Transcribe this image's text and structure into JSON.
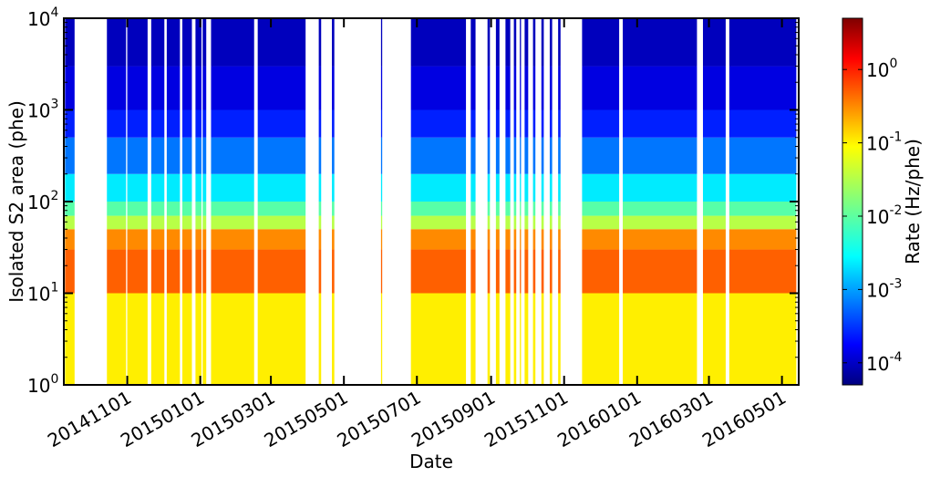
{
  "chart_data": {
    "type": "heatmap",
    "title": "",
    "xlabel": "Date",
    "ylabel": "Isolated S2 area (phe)",
    "x_tick_labels": [
      "20141101",
      "20150101",
      "20150301",
      "20150501",
      "20150701",
      "20150901",
      "20151101",
      "20160101",
      "20160301",
      "20160501"
    ],
    "x_range": [
      "20140909",
      "20160515"
    ],
    "y_scale": "log",
    "y_range": [
      1,
      10000
    ],
    "y_ticks": [
      {
        "value": 1,
        "base": "10",
        "exp": "0"
      },
      {
        "value": 10,
        "base": "10",
        "exp": "1"
      },
      {
        "value": 100,
        "base": "10",
        "exp": "2"
      },
      {
        "value": 1000,
        "base": "10",
        "exp": "3"
      },
      {
        "value": 10000,
        "base": "10",
        "exp": "4"
      }
    ],
    "colorbar": {
      "label": "Rate (Hz/phe)",
      "scale": "log",
      "range": [
        5e-05,
        5
      ],
      "colormap": "jet",
      "ticks": [
        {
          "value": 0.0001,
          "base": "10",
          "exp": "-4"
        },
        {
          "value": 0.001,
          "base": "10",
          "exp": "-3"
        },
        {
          "value": 0.01,
          "base": "10",
          "exp": "-2"
        },
        {
          "value": 0.1,
          "base": "10",
          "exp": "-1"
        },
        {
          "value": 1,
          "base": "10",
          "exp": "0"
        }
      ]
    },
    "live_periods": [
      [
        "20140910",
        "20140918"
      ],
      [
        "20141015",
        "20141031"
      ],
      [
        "20141101",
        "20141118"
      ],
      [
        "20141121",
        "20141202"
      ],
      [
        "20141204",
        "20141215"
      ],
      [
        "20141217",
        "20141225"
      ],
      [
        "20141228",
        "20150102"
      ],
      [
        "20150103",
        "20150106"
      ],
      [
        "20150110",
        "20150215"
      ],
      [
        "20150218",
        "20150330"
      ],
      [
        "20150410",
        "20150412"
      ],
      [
        "20150421",
        "20150423"
      ],
      [
        "20150601",
        "20150602"
      ],
      [
        "20150626",
        "20150811"
      ],
      [
        "20150815",
        "20150819"
      ],
      [
        "20150829",
        "20150831"
      ],
      [
        "20150905",
        "20150908"
      ],
      [
        "20150913",
        "20150917"
      ],
      [
        "20150920",
        "20150922"
      ],
      [
        "20150925",
        "20150926"
      ],
      [
        "20150929",
        "20151002"
      ],
      [
        "20151006",
        "20151008"
      ],
      [
        "20151013",
        "20151015"
      ],
      [
        "20151020",
        "20151022"
      ],
      [
        "20151027",
        "20151029"
      ],
      [
        "20151116",
        "20151217"
      ],
      [
        "20151220",
        "20160220"
      ],
      [
        "20160225",
        "20160315"
      ],
      [
        "20160318",
        "20160513"
      ]
    ],
    "s2_bands": [
      {
        "range": [
          1,
          10
        ],
        "rate_hz_per_phe": 0.08
      },
      {
        "range": [
          10,
          30
        ],
        "rate_hz_per_phe": 0.4
      },
      {
        "range": [
          30,
          50
        ],
        "rate_hz_per_phe": 0.25
      },
      {
        "range": [
          50,
          70
        ],
        "rate_hz_per_phe": 0.03
      },
      {
        "range": [
          70,
          100
        ],
        "rate_hz_per_phe": 0.01
      },
      {
        "range": [
          100,
          200
        ],
        "rate_hz_per_phe": 0.003
      },
      {
        "range": [
          200,
          500
        ],
        "rate_hz_per_phe": 0.0008
      },
      {
        "range": [
          500,
          1000
        ],
        "rate_hz_per_phe": 0.0003
      },
      {
        "range": [
          1000,
          3000
        ],
        "rate_hz_per_phe": 0.00015
      },
      {
        "range": [
          3000,
          10000
        ],
        "rate_hz_per_phe": 0.0001
      }
    ],
    "grid": false,
    "legend": "colorbar-right"
  }
}
